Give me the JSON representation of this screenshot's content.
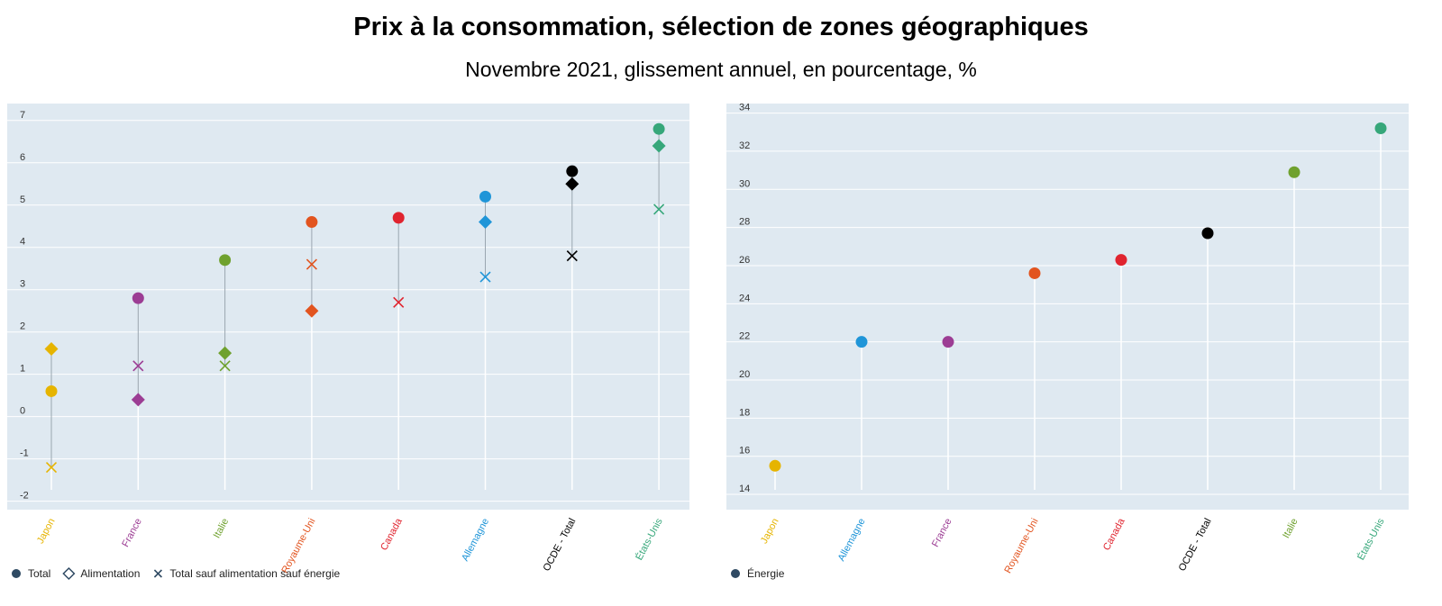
{
  "title": "Prix à la consommation, sélection de zones géographiques",
  "subtitle": "Novembre 2021, glissement annuel, en pourcentage, %",
  "chart_data": [
    {
      "type": "scatter",
      "categories": [
        "Japon",
        "France",
        "Italie",
        "Royaume-Uni",
        "Canada",
        "Allemagne",
        "OCDE - Total",
        "États-Unis"
      ],
      "category_colors": [
        "#e6b400",
        "#9c3d94",
        "#6fa12e",
        "#e2541f",
        "#e0242f",
        "#1f95d8",
        "#000000",
        "#36a77a"
      ],
      "yticks": [
        -2,
        -1,
        0,
        1,
        2,
        3,
        4,
        5,
        6,
        7
      ],
      "ylim": [
        -2.2,
        7.4
      ],
      "series": [
        {
          "name": "Total",
          "marker": "circle",
          "values": [
            0.6,
            2.8,
            3.7,
            4.6,
            4.7,
            5.2,
            5.8,
            6.8
          ]
        },
        {
          "name": "Alimentation",
          "marker": "diamond",
          "values": [
            1.6,
            0.4,
            1.5,
            2.5,
            null,
            4.6,
            5.5,
            6.4
          ]
        },
        {
          "name": "Total sauf alimentation sauf énergie",
          "marker": "x",
          "values": [
            -1.2,
            1.2,
            1.2,
            3.6,
            2.7,
            3.3,
            3.8,
            4.9
          ]
        }
      ],
      "legend_position": "bottom-left",
      "grid": true
    },
    {
      "type": "scatter",
      "categories": [
        "Japon",
        "Allemagne",
        "France",
        "Royaume-Uni",
        "Canada",
        "OCDE - Total",
        "Italie",
        "États-Unis"
      ],
      "category_colors": [
        "#e6b400",
        "#1f95d8",
        "#9c3d94",
        "#e2541f",
        "#e0242f",
        "#000000",
        "#6fa12e",
        "#36a77a"
      ],
      "yticks": [
        14,
        16,
        18,
        20,
        22,
        24,
        26,
        28,
        30,
        32,
        34
      ],
      "ylim": [
        13.2,
        34.5
      ],
      "series": [
        {
          "name": "Énergie",
          "marker": "circle",
          "values": [
            15.5,
            22.0,
            22.0,
            25.6,
            26.3,
            27.7,
            30.9,
            33.2
          ]
        }
      ],
      "legend_position": "bottom-left",
      "grid": true
    }
  ]
}
